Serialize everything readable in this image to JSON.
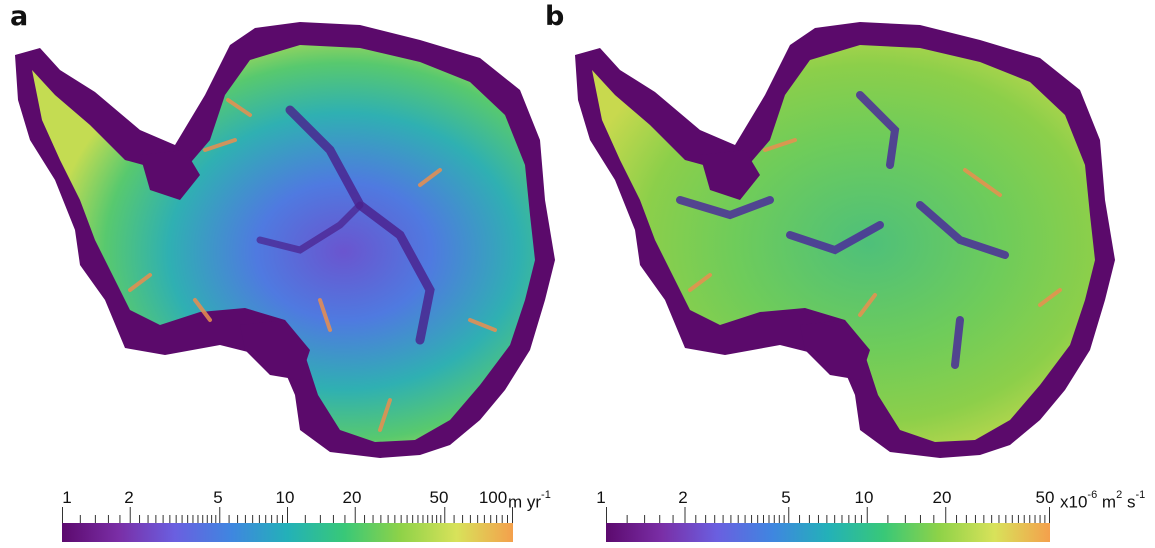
{
  "panels": [
    {
      "label": "a",
      "colorbar": {
        "tick_labels": [
          "1",
          "2",
          "5",
          "10",
          "20",
          "50",
          "100"
        ],
        "units_main": "m yr",
        "units_sup": "-1",
        "colors": [
          "#5c0a6e",
          "#7a2ea6",
          "#6a5fe0",
          "#3f86e0",
          "#23b1b8",
          "#38c878",
          "#8ed248",
          "#d8e25a",
          "#f4a04c"
        ]
      }
    },
    {
      "label": "b",
      "colorbar": {
        "tick_labels": [
          "1",
          "2",
          "5",
          "10",
          "20",
          "50"
        ],
        "units_prefix": "x10",
        "units_prefix_sup": "-6",
        "units_mid": " m",
        "units_mid_sup": "2",
        "units_end": " s",
        "units_end_sup": "-1",
        "colors": [
          "#5c0a6e",
          "#7a2ea6",
          "#6a5fe0",
          "#3f86e0",
          "#23b1b8",
          "#38c878",
          "#8ed248",
          "#d8e25a",
          "#f4a04c"
        ]
      }
    }
  ],
  "map_colors": {
    "background": "#5b0a6b",
    "interior": "#4d63d8",
    "mid": "#35c48a",
    "coast": "#a9d852",
    "stream": "#ea8e4f"
  }
}
